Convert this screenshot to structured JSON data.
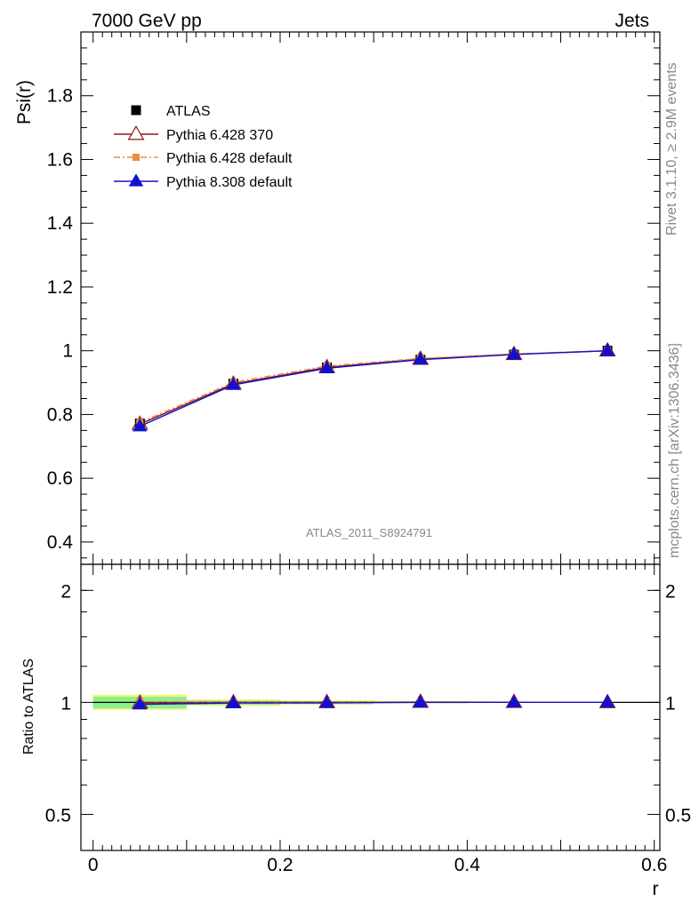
{
  "header": {
    "left": "7000 GeV pp",
    "right": "Jets"
  },
  "side_labels": {
    "top": "Rivet 3.1.10, ≥ 2.9M events",
    "bottom": "mcplots.cern.ch [arXiv:1306.3436]"
  },
  "watermark": "ATLAS_2011_S8924791",
  "colors": {
    "atlas": "#000000",
    "p6_370": "#8b1a1a",
    "p6_default": "#f08a3c",
    "p8_default": "#1010d0",
    "band_inner": "#8cf08c",
    "band_outer": "#f4f47a"
  },
  "chart_data": [
    {
      "type": "line",
      "xlabel": "",
      "ylabel": "Psi(r)",
      "xlim": [
        -0.013,
        0.606
      ],
      "ylim": [
        0.33,
        2.0
      ],
      "ytick_labels": [
        "0.4",
        "0.6",
        "0.8",
        "1",
        "1.2",
        "1.4",
        "1.6",
        "1.8"
      ],
      "yticks": [
        0.4,
        0.6,
        0.8,
        1.0,
        1.2,
        1.4,
        1.6,
        1.8
      ],
      "legend_position": "top-left",
      "x": [
        0.05,
        0.15,
        0.25,
        0.35,
        0.45,
        0.55
      ],
      "series": [
        {
          "name": "ATLAS",
          "marker": "square",
          "values": [
            0.772,
            0.897,
            0.948,
            0.972,
            0.988,
            1.0
          ]
        },
        {
          "name": "Pythia 6.428 370",
          "marker": "triangle-open",
          "values": [
            0.77,
            0.896,
            0.948,
            0.974,
            0.989,
            1.0
          ]
        },
        {
          "name": "Pythia 6.428 default",
          "marker": "square-small",
          "values": [
            0.775,
            0.901,
            0.952,
            0.976,
            0.99,
            1.0
          ]
        },
        {
          "name": "Pythia 8.308 default",
          "marker": "triangle",
          "values": [
            0.763,
            0.893,
            0.945,
            0.972,
            0.988,
            1.0
          ]
        }
      ]
    },
    {
      "type": "line",
      "xlabel": "r",
      "ylabel": "Ratio to ATLAS",
      "yscale": "log",
      "xlim": [
        -0.013,
        0.606
      ],
      "ylim": [
        0.4,
        2.35
      ],
      "xticks": [
        0,
        0.2,
        0.4,
        0.6
      ],
      "xtick_labels": [
        "0",
        "0.2",
        "0.4",
        "0.6"
      ],
      "yticks": [
        0.5,
        1,
        2
      ],
      "ytick_labels": [
        "0.5",
        "1",
        "2"
      ],
      "x": [
        0.05,
        0.15,
        0.25,
        0.35,
        0.45,
        0.55
      ],
      "band": {
        "inner": [
          [
            0.963,
            1.035
          ],
          [
            0.985,
            1.012
          ],
          [
            0.99,
            1.008
          ],
          [
            0.995,
            1.005
          ],
          [
            0.997,
            1.003
          ],
          [
            0.999,
            1.001
          ]
        ],
        "outer": [
          [
            0.955,
            1.05
          ],
          [
            0.98,
            1.018
          ],
          [
            0.986,
            1.012
          ],
          [
            0.993,
            1.007
          ],
          [
            0.996,
            1.004
          ],
          [
            0.999,
            1.001
          ]
        ]
      },
      "series": [
        {
          "name": "Pythia 6.428 370",
          "values": [
            0.997,
            0.999,
            1.0,
            1.002,
            1.001,
            1.0
          ]
        },
        {
          "name": "Pythia 6.428 default",
          "values": [
            1.004,
            1.004,
            1.004,
            1.004,
            1.002,
            1.0
          ]
        },
        {
          "name": "Pythia 8.308 default",
          "values": [
            0.988,
            0.996,
            0.997,
            1.0,
            1.0,
            1.0
          ]
        }
      ]
    }
  ]
}
